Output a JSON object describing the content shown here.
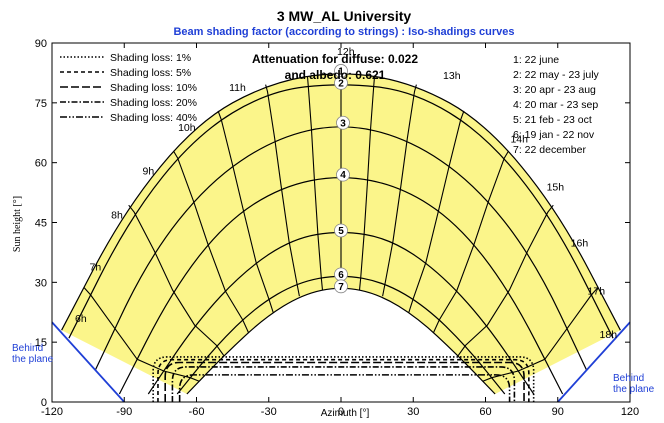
{
  "chart_data": {
    "type": "line",
    "title": "3 MW_AL University",
    "subtitle": "Beam shading factor (according to strings) : Iso-shadings curves",
    "xlabel": "Azimuth [°]",
    "ylabel": "Sun height [°]",
    "xlim": [
      -120,
      120
    ],
    "ylim": [
      0,
      90
    ],
    "xticks": [
      -120,
      -90,
      -60,
      -30,
      0,
      30,
      60,
      90,
      120
    ],
    "yticks": [
      0,
      15,
      30,
      45,
      60,
      75,
      90
    ],
    "grid": false,
    "legend_position": "top-left",
    "attenuation_text_1": "Attenuation for diffuse: 0.022",
    "attenuation_text_2": "and albedo: 0.621",
    "shading_legend": [
      {
        "label": "Shading loss: 1%",
        "dash": "dot"
      },
      {
        "label": "Shading loss: 5%",
        "dash": "dash"
      },
      {
        "label": "Shading loss: 10%",
        "dash": "longdash"
      },
      {
        "label": "Shading loss: 20%",
        "dash": "dashdot"
      },
      {
        "label": "Shading loss: 40%",
        "dash": "dashdotdot"
      }
    ],
    "date_legend": [
      "1: 22 june",
      "2: 22 may - 23 july",
      "3: 20 apr - 23 aug",
      "4: 20 mar - 23 sep",
      "5: 21 feb - 23 oct",
      "6: 19 jan - 22 nov",
      "7: 22 december"
    ],
    "sun_paths": [
      {
        "name": "1",
        "points": [
          [
            -116,
            18
          ],
          [
            -90,
            48
          ],
          [
            -60,
            70
          ],
          [
            -30,
            80
          ],
          [
            0,
            83
          ],
          [
            30,
            80
          ],
          [
            60,
            70
          ],
          [
            90,
            48
          ],
          [
            116,
            18
          ]
        ]
      },
      {
        "name": "2",
        "points": [
          [
            -113,
            16
          ],
          [
            -88,
            46
          ],
          [
            -60,
            67
          ],
          [
            -30,
            78
          ],
          [
            0,
            80
          ],
          [
            30,
            78
          ],
          [
            60,
            67
          ],
          [
            88,
            46
          ],
          [
            113,
            16
          ]
        ]
      },
      {
        "name": "3",
        "points": [
          [
            -102,
            8
          ],
          [
            -80,
            36
          ],
          [
            -55,
            55
          ],
          [
            -28,
            66
          ],
          [
            0,
            70
          ],
          [
            28,
            66
          ],
          [
            55,
            55
          ],
          [
            80,
            36
          ],
          [
            102,
            8
          ]
        ]
      },
      {
        "name": "4",
        "points": [
          [
            -92,
            2
          ],
          [
            -70,
            28
          ],
          [
            -48,
            45
          ],
          [
            -25,
            54
          ],
          [
            0,
            57
          ],
          [
            25,
            54
          ],
          [
            48,
            45
          ],
          [
            70,
            28
          ],
          [
            92,
            2
          ]
        ]
      },
      {
        "name": "5",
        "points": [
          [
            -80,
            2
          ],
          [
            -60,
            20
          ],
          [
            -40,
            33
          ],
          [
            -20,
            41
          ],
          [
            0,
            43
          ],
          [
            20,
            41
          ],
          [
            40,
            33
          ],
          [
            60,
            20
          ],
          [
            80,
            2
          ]
        ]
      },
      {
        "name": "6",
        "points": [
          [
            -68,
            2
          ],
          [
            -52,
            14
          ],
          [
            -35,
            24
          ],
          [
            -18,
            30
          ],
          [
            0,
            32
          ],
          [
            18,
            30
          ],
          [
            35,
            24
          ],
          [
            52,
            14
          ],
          [
            68,
            2
          ]
        ]
      },
      {
        "name": "7",
        "points": [
          [
            -64,
            2
          ],
          [
            -48,
            12
          ],
          [
            -32,
            21
          ],
          [
            -16,
            27
          ],
          [
            0,
            29
          ],
          [
            16,
            27
          ],
          [
            32,
            21
          ],
          [
            48,
            12
          ],
          [
            64,
            2
          ]
        ]
      }
    ],
    "hour_labels": [
      {
        "label": "6h",
        "x": -108,
        "y": 20
      },
      {
        "label": "7h",
        "x": -102,
        "y": 33
      },
      {
        "label": "8h",
        "x": -93,
        "y": 46
      },
      {
        "label": "9h",
        "x": -80,
        "y": 57
      },
      {
        "label": "10h",
        "x": -64,
        "y": 68
      },
      {
        "label": "11h",
        "x": -43,
        "y": 78
      },
      {
        "label": "12h",
        "x": 2,
        "y": 87
      },
      {
        "label": "13h",
        "x": 46,
        "y": 81
      },
      {
        "label": "14h",
        "x": 74,
        "y": 65
      },
      {
        "label": "15h",
        "x": 89,
        "y": 53
      },
      {
        "label": "16h",
        "x": 99,
        "y": 39
      },
      {
        "label": "17h",
        "x": 106,
        "y": 27
      },
      {
        "label": "18h",
        "x": 111,
        "y": 16
      }
    ],
    "shading_curves": [
      {
        "name": "Shading loss: 1%",
        "dash": "dot",
        "y_top": 11.3,
        "x_left": -78,
        "x_right": 80
      },
      {
        "name": "Shading loss: 5%",
        "dash": "dash",
        "y_top": 10.6,
        "x_left": -76,
        "x_right": 78
      },
      {
        "name": "Shading loss: 10%",
        "dash": "longdash",
        "y_top": 9.9,
        "x_left": -73,
        "x_right": 76
      },
      {
        "name": "Shading loss: 20%",
        "dash": "dashdot",
        "y_top": 8.8,
        "x_left": -70,
        "x_right": 72
      },
      {
        "name": "Shading loss: 40%",
        "dash": "dashdotdot",
        "y_top": 6.8,
        "x_left": -67,
        "x_right": 70
      }
    ],
    "behind_plane_text": [
      "Behind",
      "the plane"
    ],
    "behind_plane_boundary": {
      "left": [
        [
          -120,
          20
        ],
        [
          -90,
          0
        ]
      ],
      "right": [
        [
          120,
          20
        ],
        [
          90,
          0
        ]
      ]
    },
    "colors": {
      "fill": "#fbf58a",
      "stroke": "#000000",
      "accent": "#1f3fd6",
      "circle": "#ffffff"
    }
  }
}
